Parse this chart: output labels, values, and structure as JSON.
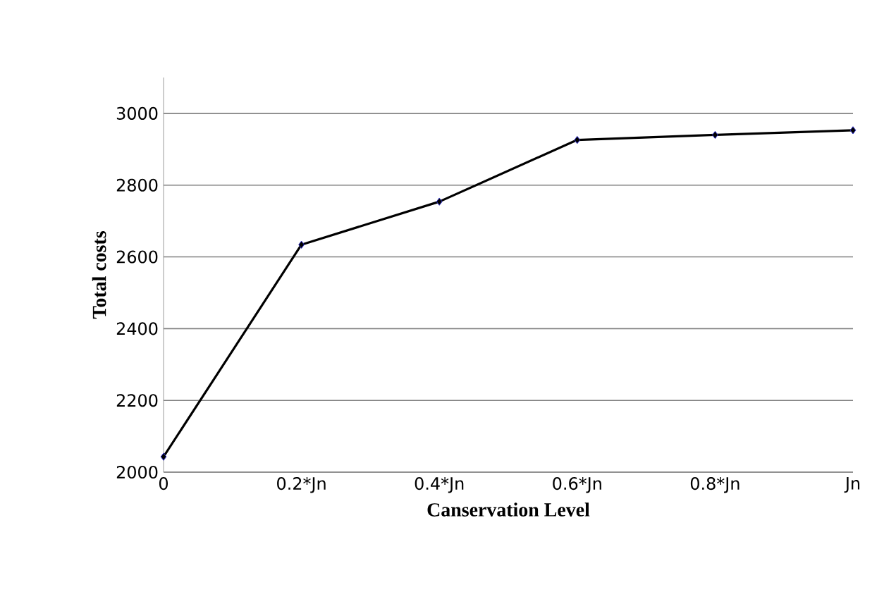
{
  "chart_data": {
    "type": "line",
    "xlabel": "Canservation Level",
    "ylabel": "Total costs",
    "categories": [
      "0",
      "0.2*Jn",
      "0.4*Jn",
      "0.6*Jn",
      "0.8*Jn",
      "Jn"
    ],
    "series": [
      {
        "color": "#000000",
        "values": [
          2043,
          2634,
          2754,
          2926,
          2940,
          2953
        ]
      }
    ],
    "ylim": [
      2000,
      3100
    ],
    "yticks": [
      2000,
      2200,
      2400,
      2600,
      2800,
      3000
    ],
    "grid": "y",
    "marker": "diamond",
    "line_style": "solid"
  }
}
